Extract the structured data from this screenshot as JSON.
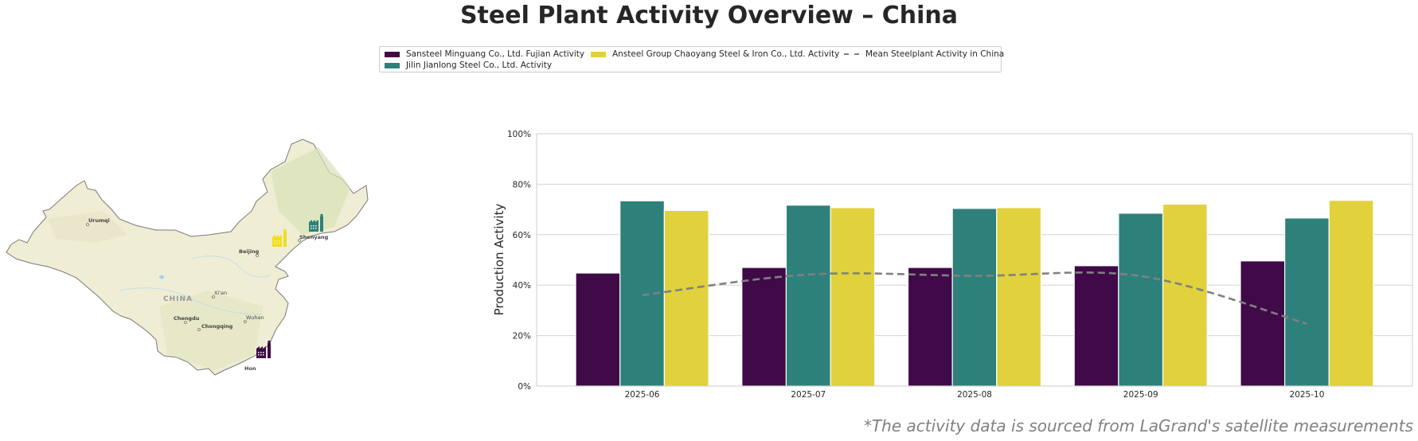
{
  "title": "Steel Plant Activity Overview – China",
  "footnote": "*The activity data is sourced from LaGrand's satellite measurements",
  "legend": {
    "items": [
      {
        "label": "Sansteel Minguang Co., Ltd. Fujian Activity",
        "color": "#3f0a47",
        "kind": "bar"
      },
      {
        "label": "Jilin Jianlong Steel Co., Ltd. Activity",
        "color": "#2e807b",
        "kind": "bar"
      },
      {
        "label": "Ansteel Group Chaoyang Steel & Iron Co., Ltd. Activity",
        "color": "#e1d13c",
        "kind": "bar"
      },
      {
        "label": "Mean Steelplant Activity in China",
        "color": "#808080",
        "kind": "dashed-line"
      }
    ]
  },
  "map": {
    "country_label": "CHINA",
    "cities": [
      "Urumqi",
      "Beijing",
      "Shenyang",
      "Xi'an",
      "Chengdu",
      "Chongqing",
      "Wuhan",
      "Hon"
    ],
    "markers": [
      {
        "name": "Sansteel Minguang Co., Ltd. Fujian",
        "icon": "factory-icon",
        "color": "#3f0a47"
      },
      {
        "name": "Jilin Jianlong Steel Co., Ltd.",
        "icon": "factory-icon",
        "color": "#2e807b"
      },
      {
        "name": "Ansteel Group Chaoyang Steel & Iron Co., Ltd.",
        "icon": "factory-icon",
        "color": "#f2dd1e"
      }
    ]
  },
  "chart_data": {
    "type": "bar",
    "title": "",
    "xlabel": "",
    "ylabel": "Production Activity",
    "ylim": [
      0,
      100
    ],
    "yticks": [
      0,
      20,
      40,
      60,
      80,
      100
    ],
    "ytick_labels": [
      "0%",
      "20%",
      "40%",
      "60%",
      "80%",
      "100%"
    ],
    "grid": true,
    "legend_position": "top-center",
    "categories": [
      "2025-06",
      "2025-07",
      "2025-08",
      "2025-09",
      "2025-10"
    ],
    "series": [
      {
        "name": "Sansteel Minguang Co., Ltd. Fujian Activity",
        "color": "#3f0a47",
        "values": [
          44.8,
          47.0,
          47.0,
          47.7,
          49.6
        ]
      },
      {
        "name": "Jilin Jianlong Steel Co., Ltd. Activity",
        "color": "#2e807b",
        "values": [
          73.4,
          71.7,
          70.4,
          68.5,
          66.6
        ]
      },
      {
        "name": "Ansteel Group Chaoyang Steel & Iron Co., Ltd. Activity",
        "color": "#e1d13c",
        "values": [
          69.6,
          70.7,
          70.7,
          72.1,
          73.6
        ]
      }
    ],
    "line_series": {
      "name": "Mean Steelplant Activity in China",
      "color": "#808080",
      "style": "dashed-smoothed",
      "values": [
        36.0,
        44.2,
        43.7,
        43.6,
        24.7
      ]
    }
  }
}
